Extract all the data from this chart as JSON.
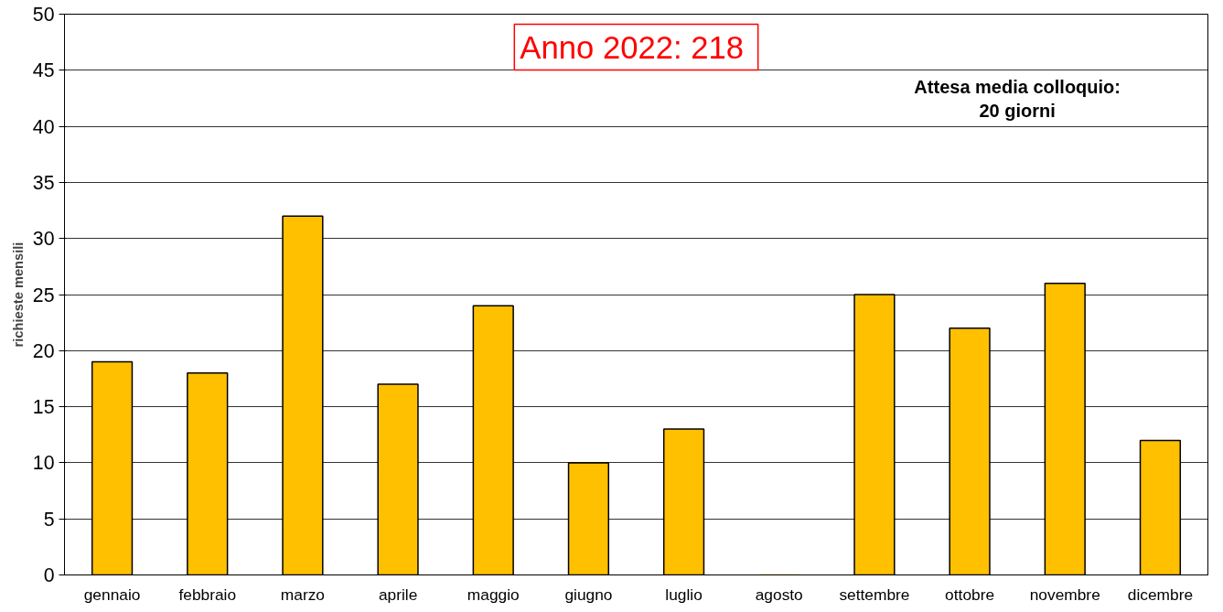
{
  "chart_data": {
    "type": "bar",
    "title": "Anno 2022:  218",
    "ylabel": "richieste mensili",
    "categories": [
      "gennaio",
      "febbraio",
      "marzo",
      "aprile",
      "maggio",
      "giugno",
      "luglio",
      "agosto",
      "settembre",
      "ottobre",
      "novembre",
      "dicembre"
    ],
    "values": [
      19,
      18,
      32,
      17,
      24,
      10,
      13,
      0,
      25,
      22,
      26,
      12
    ],
    "color": "#ffc000",
    "ylim": [
      0,
      50
    ],
    "yticks": [
      0,
      5,
      10,
      15,
      20,
      25,
      30,
      35,
      40,
      45,
      50
    ],
    "grid": "y",
    "annotations": [
      "Attesa media colloquio:\n20 giorni"
    ]
  }
}
